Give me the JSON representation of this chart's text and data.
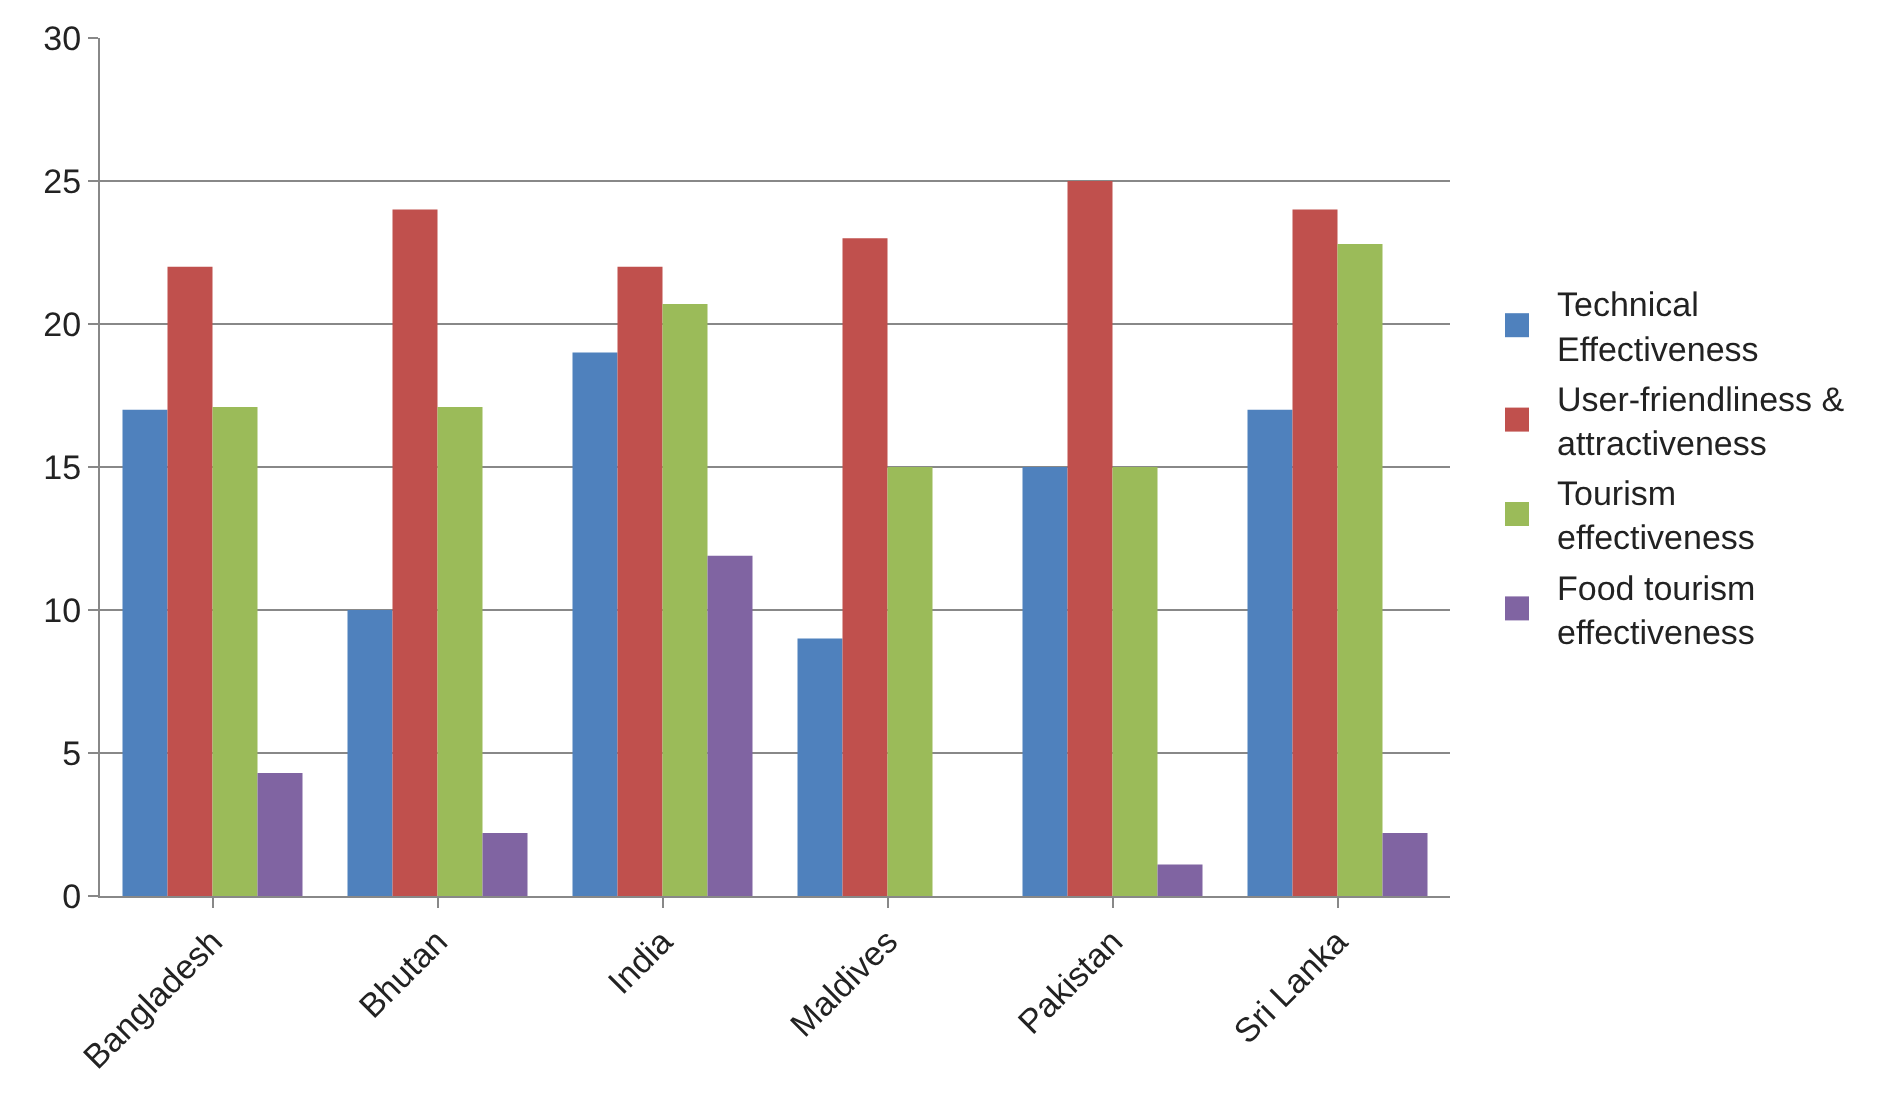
{
  "chart_data": {
    "type": "bar",
    "categories": [
      "Bangladesh",
      "Bhutan",
      "India",
      "Maldives",
      "Pakistan",
      "Sri Lanka"
    ],
    "series": [
      {
        "name": "Technical Effectiveness",
        "color": "#4f81bd",
        "values": [
          17,
          10,
          19,
          9,
          15,
          17
        ]
      },
      {
        "name": "User-friendliness & attractiveness",
        "color": "#c0504d",
        "values": [
          22,
          24,
          22,
          23,
          25,
          24
        ]
      },
      {
        "name": "Tourism effectiveness",
        "color": "#9bbb59",
        "values": [
          17.1,
          17.1,
          20.7,
          15,
          15,
          22.8
        ]
      },
      {
        "name": "Food tourism effectiveness",
        "color": "#8064a2",
        "values": [
          4.3,
          2.2,
          11.9,
          0,
          1.1,
          2.2
        ]
      }
    ],
    "ylim": [
      0,
      30
    ],
    "yticks": [
      0,
      5,
      10,
      15,
      20,
      25,
      30
    ],
    "grid": "y",
    "legend": "right"
  }
}
